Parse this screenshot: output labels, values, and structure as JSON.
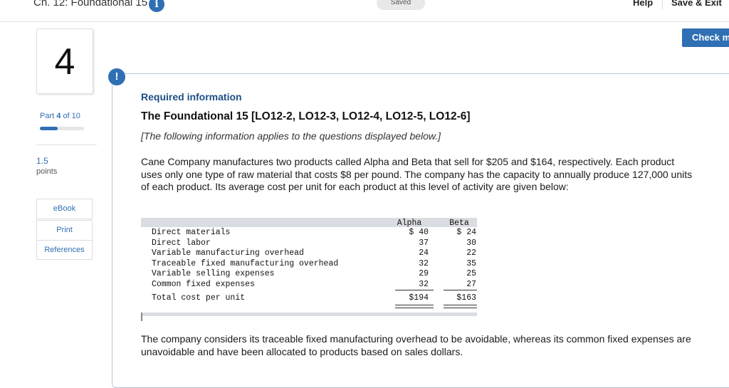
{
  "header": {
    "title": "Ch. 12: Foundational 15",
    "info_icon": "i",
    "saved_label": "Saved",
    "help_label": "Help",
    "save_exit_label": "Save & Exit",
    "check_label": "Check m"
  },
  "sidebar": {
    "question_number": "4",
    "part_prefix": "Part",
    "part_current": "4",
    "part_suffix": "of 10",
    "progress_fraction": 0.4,
    "points_value": "1.5",
    "points_label": "points",
    "resources": [
      "eBook",
      "Print",
      "References"
    ]
  },
  "content": {
    "alert_icon": "!",
    "required_label": "Required information",
    "heading": "The Foundational 15 [LO12-2, LO12-3, LO12-4, LO12-5, LO12-6]",
    "italic_note": "[The following information applies to the questions displayed below.]",
    "paragraph1": "Cane Company manufactures two products called Alpha and Beta that sell for $205 and $164, respectively. Each product uses only one type of raw material that costs $8 per pound. The company has the capacity to annually produce 127,000 units of each product. Its average cost per unit for each product at this level of activity are given below:",
    "paragraph2": "The company considers its traceable fixed manufacturing overhead to be avoidable, whereas its common fixed expenses are unavoidable and have been allocated to products based on sales dollars."
  },
  "cost_table": {
    "headers": [
      "Alpha",
      "Beta"
    ],
    "rows": [
      {
        "label": "Direct materials",
        "alpha": "$ 40",
        "beta": "$ 24"
      },
      {
        "label": "Direct labor",
        "alpha": "37",
        "beta": "30"
      },
      {
        "label": "Variable manufacturing overhead",
        "alpha": "24",
        "beta": "22"
      },
      {
        "label": "Traceable fixed manufacturing overhead",
        "alpha": "32",
        "beta": "35"
      },
      {
        "label": "Variable selling expenses",
        "alpha": "29",
        "beta": "25"
      },
      {
        "label": "Common fixed expenses",
        "alpha": "32",
        "beta": "27"
      }
    ],
    "total": {
      "label": "Total cost per unit",
      "alpha": "$194",
      "beta": "$163"
    }
  }
}
